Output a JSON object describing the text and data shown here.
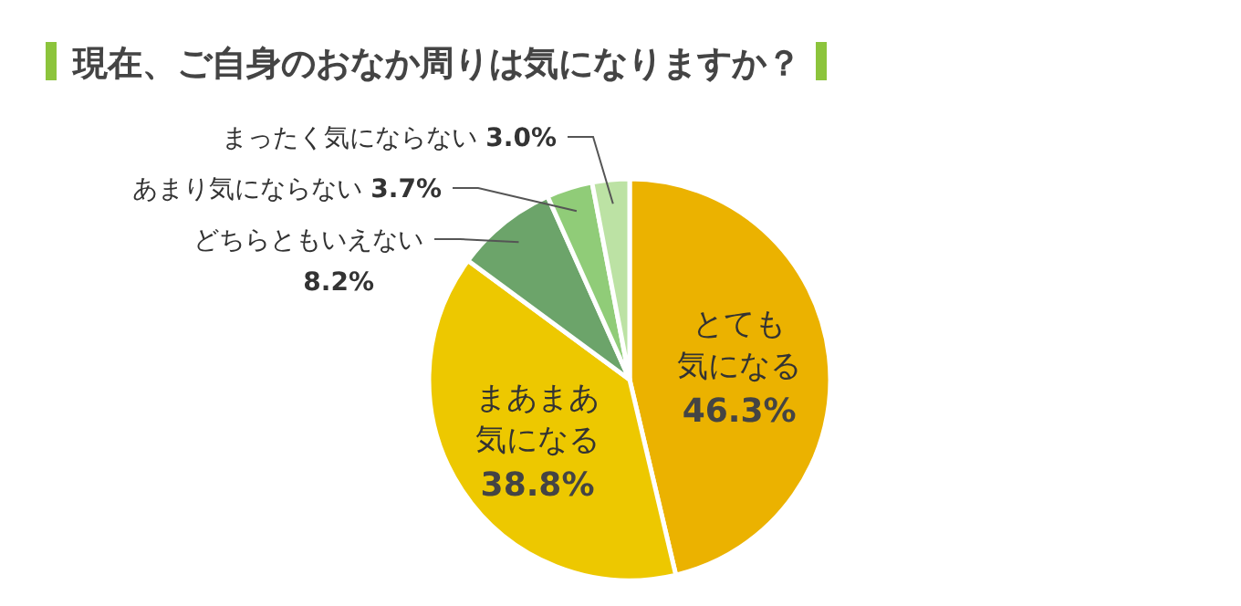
{
  "chart_data": {
    "type": "pie",
    "title": "現在、ご自身のおなか周りは気になりますか？",
    "categories": [
      "とても気になる",
      "まあまあ気になる",
      "どちらともいえない",
      "あまり気にならない",
      "まったく気にならない"
    ],
    "values": [
      46.3,
      38.8,
      8.2,
      3.7,
      3.0
    ],
    "value_labels": [
      "46.3%",
      "38.8%",
      "8.2%",
      "3.7%",
      "3.0%"
    ],
    "colors": [
      "#ebb200",
      "#edc800",
      "#6ca46a",
      "#90cc78",
      "#bce2a4"
    ],
    "legend": false
  }
}
